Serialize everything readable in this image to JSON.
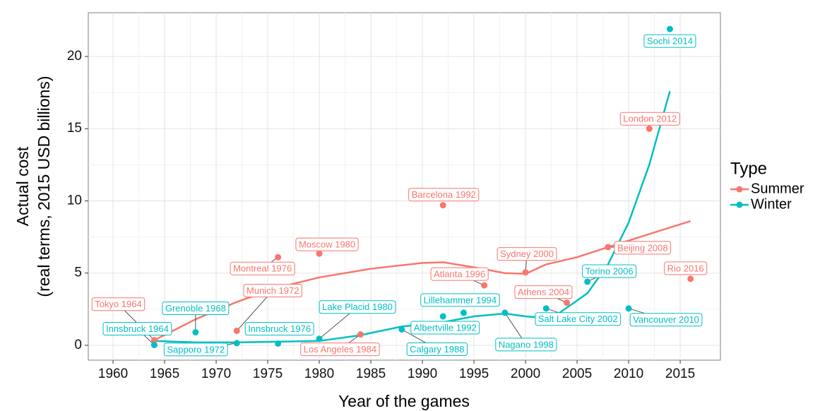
{
  "chart_data": {
    "type": "scatter",
    "xlabel": "Year of the games",
    "ylabel": [
      "Actual cost",
      "(real terms, 2015 USD billions)"
    ],
    "legend_title": "Type",
    "legend": "right",
    "grid": true,
    "xlim": [
      1957.6,
      2018.9
    ],
    "ylim": [
      -1.03,
      23.03
    ],
    "xticks": [
      1960,
      1965,
      1970,
      1975,
      1980,
      1985,
      1990,
      1995,
      2000,
      2005,
      2010,
      2015
    ],
    "yticks": [
      0,
      5,
      10,
      15,
      20
    ],
    "series": [
      {
        "name": "Summer",
        "color": "#F8766D",
        "x": [
          1964,
          1976,
          1980,
          1972,
          1984,
          1992,
          1996,
          2000,
          2004,
          2008,
          2012,
          2016
        ],
        "values": [
          0.35,
          6.1,
          6.35,
          1.0,
          0.75,
          9.7,
          4.15,
          5.05,
          2.95,
          6.8,
          15.0,
          4.6
        ],
        "labels": [
          "Tokyo 1964",
          "Montreal 1976",
          "Moscow 1980",
          "Munich 1972",
          "Los Angeles 1984",
          "Barcelona 1992",
          "Atlanta 1996",
          "Sydney 2000",
          "Athens 2004",
          "Beijing 2008",
          "London 2012",
          "Rio 2016"
        ],
        "trend": {
          "x": [
            1964,
            1968,
            1972,
            1976,
            1980,
            1985,
            1990,
            1992,
            1995,
            1998,
            2000,
            2002,
            2005,
            2008,
            2012,
            2016
          ],
          "values": [
            0.35,
            1.8,
            3.0,
            4.0,
            4.7,
            5.3,
            5.7,
            5.75,
            5.4,
            5.0,
            4.95,
            5.6,
            6.1,
            6.8,
            7.7,
            8.6
          ]
        }
      },
      {
        "name": "Winter",
        "color": "#00BFC4",
        "x": [
          1964,
          1968,
          1972,
          1976,
          1980,
          1988,
          1992,
          1994,
          1998,
          2002,
          2006,
          2010,
          2014
        ],
        "values": [
          0.02,
          0.9,
          0.15,
          0.12,
          0.45,
          1.1,
          2.0,
          2.25,
          2.25,
          2.55,
          4.4,
          2.55,
          21.9
        ],
        "labels": [
          "Innsbruck 1964",
          "Grenoble 1968",
          "Sapporo 1972",
          "Innsbruck 1976",
          "Lake Placid 1980",
          "Calgary 1988",
          "Albertville 1992",
          "Lillehammer 1994",
          "Nagano 1998",
          "Salt Lake City 2002",
          "Torino 2006",
          "Vancouver 2010",
          "Sochi 2014"
        ],
        "trend": {
          "x": [
            1964,
            1968,
            1972,
            1976,
            1980,
            1984,
            1988,
            1992,
            1995,
            1998,
            2000,
            2002,
            2003,
            2004,
            2006,
            2008,
            2010,
            2012,
            2014
          ],
          "values": [
            0.3,
            0.2,
            0.2,
            0.25,
            0.3,
            0.7,
            1.3,
            1.6,
            2.0,
            2.2,
            2.0,
            1.9,
            2.1,
            2.6,
            3.6,
            5.6,
            8.5,
            12.5,
            17.6
          ]
        }
      }
    ]
  }
}
